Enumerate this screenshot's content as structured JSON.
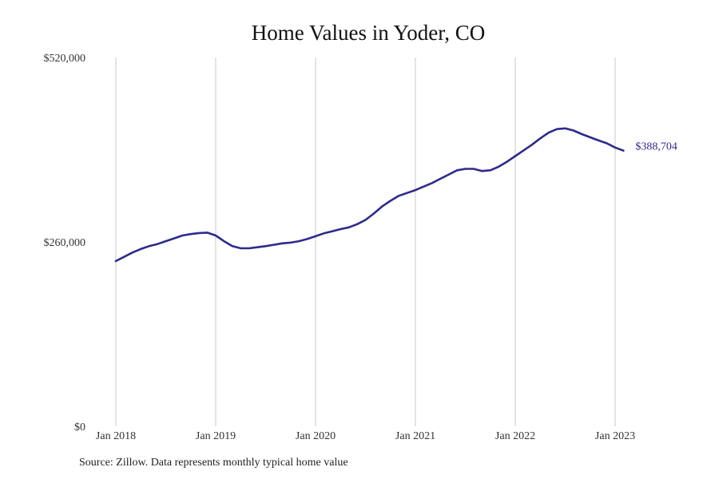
{
  "colors": {
    "line": "#2e2a8c",
    "grid": "#c8c8c8",
    "text": "#333333"
  },
  "source_note": "Source: Zillow. Data represents monthly typical home value",
  "chart_data": {
    "type": "line",
    "title": "Home Values in Yoder, CO",
    "xlabel": "",
    "ylabel": "",
    "ylim": [
      0,
      520000
    ],
    "y_ticks": [
      {
        "value": 0,
        "label": "$0"
      },
      {
        "value": 260000,
        "label": "$260,000"
      },
      {
        "value": 520000,
        "label": "$520,000"
      }
    ],
    "x_ticks": [
      {
        "date": "2018-01",
        "label": "Jan 2018"
      },
      {
        "date": "2019-01",
        "label": "Jan 2019"
      },
      {
        "date": "2020-01",
        "label": "Jan 2020"
      },
      {
        "date": "2021-01",
        "label": "Jan 2021"
      },
      {
        "date": "2022-01",
        "label": "Jan 2022"
      },
      {
        "date": "2023-01",
        "label": "Jan 2023"
      }
    ],
    "xlim": [
      "2018-01",
      "2023-04"
    ],
    "grid": "vertical",
    "end_label": "$388,704",
    "series": [
      {
        "x": [
          "2018-01",
          "2018-02",
          "2018-03",
          "2018-04",
          "2018-05",
          "2018-06",
          "2018-07",
          "2018-08",
          "2018-09",
          "2018-10",
          "2018-11",
          "2018-12",
          "2019-01",
          "2019-02",
          "2019-03",
          "2019-04",
          "2019-05",
          "2019-06",
          "2019-07",
          "2019-08",
          "2019-09",
          "2019-10",
          "2019-11",
          "2019-12",
          "2020-01",
          "2020-02",
          "2020-03",
          "2020-04",
          "2020-05",
          "2020-06",
          "2020-07",
          "2020-08",
          "2020-09",
          "2020-10",
          "2020-11",
          "2020-12",
          "2021-01",
          "2021-02",
          "2021-03",
          "2021-04",
          "2021-05",
          "2021-06",
          "2021-07",
          "2021-08",
          "2021-09",
          "2021-10",
          "2021-11",
          "2021-12",
          "2022-01",
          "2022-02",
          "2022-03",
          "2022-04",
          "2022-05",
          "2022-06",
          "2022-07",
          "2022-08",
          "2022-09",
          "2022-10",
          "2022-11",
          "2022-12",
          "2023-01",
          "2023-02"
        ],
        "values": [
          233000,
          239000,
          245000,
          250000,
          254000,
          257000,
          261000,
          265000,
          269000,
          271000,
          272500,
          273000,
          269000,
          261000,
          254000,
          251000,
          251000,
          252500,
          254000,
          256000,
          258000,
          259000,
          261000,
          264000,
          268000,
          272000,
          275000,
          278000,
          280500,
          285000,
          291000,
          300000,
          310000,
          318000,
          325000,
          329000,
          333000,
          338000,
          343000,
          349000,
          355000,
          361000,
          363000,
          363000,
          360000,
          361000,
          366000,
          373000,
          381000,
          389000,
          397000,
          406000,
          414000,
          419000,
          420000,
          417000,
          412000,
          407500,
          403000,
          399000,
          393000,
          388704
        ]
      }
    ]
  }
}
